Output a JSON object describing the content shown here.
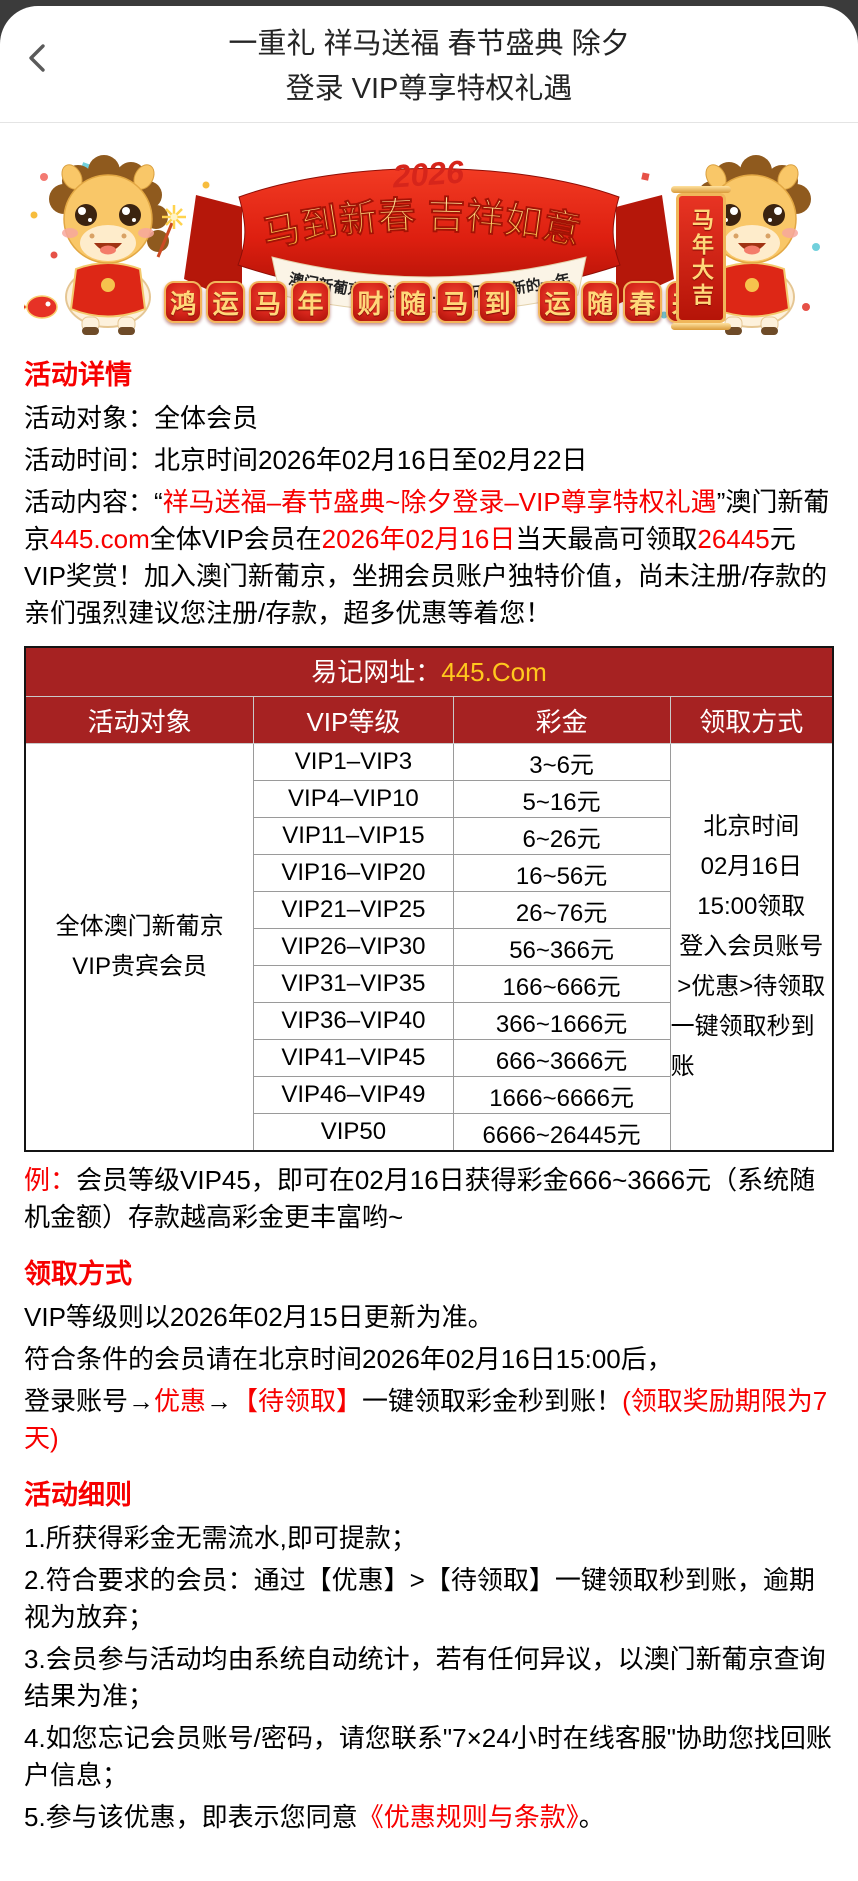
{
  "colors": {
    "accent_red": "#F70000",
    "table_red": "#A62222",
    "gold": "#FFC81E",
    "ribbon_red": "#E02415",
    "seal_red": "#D6251B",
    "frame_dark": "#3B3B3B"
  },
  "header": {
    "title_line1": "一重礼 祥马送福 春节盛典 除夕",
    "title_line2": "登录 VIP尊享特权礼遇"
  },
  "banner": {
    "year": "2026",
    "ribbon_text": "马到新春 吉祥如意",
    "subtitle": "澳门新葡京娱乐城445.com祝您在新的一年里",
    "seals": [
      "鸿",
      "运",
      "马",
      "年",
      "",
      "财",
      "随",
      "马",
      "到",
      "",
      "运",
      "随",
      "春",
      "来"
    ],
    "scroll_text": "马年大吉"
  },
  "details": {
    "heading": "活动详情",
    "audience_label": "活动对象：",
    "audience_value": "全体会员",
    "time_label": "活动时间：",
    "time_value": "北京时间2026年02月16日至02月22日",
    "content_segments": [
      {
        "t": "活动内容：“",
        "c": "black"
      },
      {
        "t": "祥马送福–春节盛典~除夕登录–VIP尊享特权礼遇",
        "c": "red"
      },
      {
        "t": "”澳门新葡京",
        "c": "black"
      },
      {
        "t": "445.com",
        "c": "red"
      },
      {
        "t": "全体VIP会员在",
        "c": "black"
      },
      {
        "t": "2026年02月16日",
        "c": "red"
      },
      {
        "t": "当天最高可领取",
        "c": "black"
      },
      {
        "t": "26445",
        "c": "red"
      },
      {
        "t": "元VIP奖赏！加入澳门新葡京，坐拥会员账户独特价值，尚未注册/存款的亲们强烈建议您注册/存款，超多优惠等着您！",
        "c": "black"
      }
    ]
  },
  "table": {
    "url_label": "易记网址：",
    "url_value": "445.Com",
    "columns": [
      "活动对象",
      "VIP等级",
      "彩金",
      "领取方式"
    ],
    "target_lines": [
      "全体澳门新葡京",
      "VIP贵宾会员"
    ],
    "rows": [
      {
        "level": "VIP1–VIP3",
        "amount": "3~6元"
      },
      {
        "level": "VIP4–VIP10",
        "amount": "5~16元"
      },
      {
        "level": "VIP11–VIP15",
        "amount": "6~26元"
      },
      {
        "level": "VIP16–VIP20",
        "amount": "16~56元"
      },
      {
        "level": "VIP21–VIP25",
        "amount": "26~76元"
      },
      {
        "level": "VIP26–VIP30",
        "amount": "56~366元"
      },
      {
        "level": "VIP31–VIP35",
        "amount": "166~666元"
      },
      {
        "level": "VIP36–VIP40",
        "amount": "366~1666元"
      },
      {
        "level": "VIP41–VIP45",
        "amount": "666~3666元"
      },
      {
        "level": "VIP46–VIP49",
        "amount": "1666~6666元"
      },
      {
        "level": "VIP50",
        "amount": "6666~26445元"
      }
    ],
    "claim_lines": [
      "北京时间",
      "02月16日",
      "15:00领取",
      "登入会员账号",
      ">优惠>待领取",
      "一键领取秒到账"
    ]
  },
  "example_segments": [
    {
      "t": "例：",
      "c": "red"
    },
    {
      "t": "会员等级VIP45，即可在02月16日获得彩金666~3666元（系统随机金额）存款越高彩金更丰富哟~",
      "c": "black"
    }
  ],
  "claim": {
    "heading": "领取方式",
    "line1": "VIP等级则以2026年02月15日更新为准。",
    "line2": "符合条件的会员请在北京时间2026年02月16日15:00后，",
    "line3_segments": [
      {
        "t": "登录账号→",
        "c": "black"
      },
      {
        "t": "优惠",
        "c": "red"
      },
      {
        "t": "→",
        "c": "black"
      },
      {
        "t": "【待领取】",
        "c": "red"
      },
      {
        "t": "一键领取彩金秒到账！",
        "c": "black"
      },
      {
        "t": "(领取奖励期限为7天)",
        "c": "red"
      }
    ]
  },
  "rules": {
    "heading": "活动细则",
    "r1": "1.所获得彩金无需流水,即可提款；",
    "r2": "2.符合要求的会员：通过【优惠】>【待领取】一键领取秒到账，逾期视为放弃；",
    "r3": "3.会员参与活动均由系统自动统计，若有任何异议，以澳门新葡京查询结果为准；",
    "r4": "4.如您忘记会员账号/密码，请您联系\"7×24小时在线客服\"协助您找回账户信息；",
    "r5_segments": [
      {
        "t": "5.参与该优惠，即表示您同意",
        "c": "black"
      },
      {
        "t": "《优惠规则与条款》",
        "c": "red",
        "link": true,
        "name": "terms-link"
      },
      {
        "t": "。",
        "c": "black"
      }
    ]
  }
}
